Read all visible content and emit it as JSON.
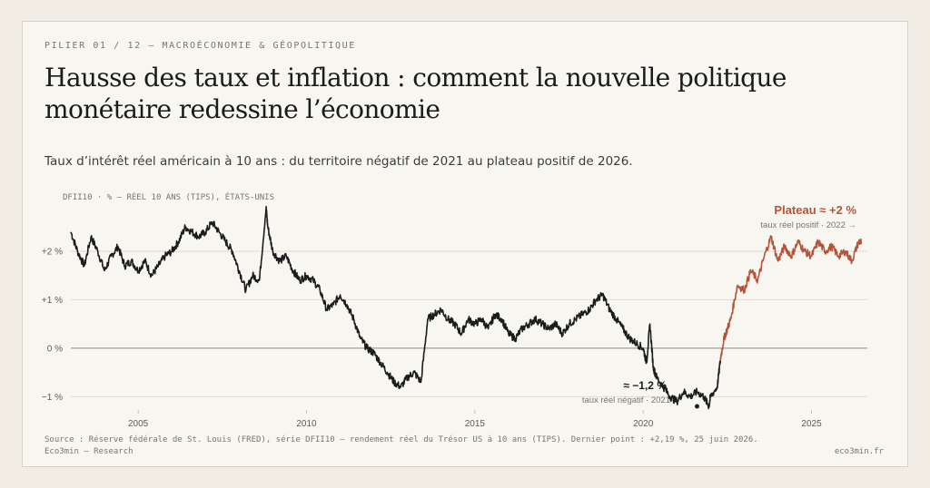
{
  "header": {
    "kicker": "PILIER 01 / 12 — MACROÉCONOMIE & GÉOPOLITIQUE",
    "title": "Hausse des taux et inflation : comment la nouvelle politique monétaire redessine l’économie",
    "subtitle": "Taux d’intérêt réel américain à 10 ans : du territoire négatif de 2021 au plateau positif de 2026."
  },
  "footer": {
    "source": "Source : Réserve fédérale de St. Louis (FRED), série DFII10 — rendement réel du Trésor US à 10 ans (TIPS). Dernier point : +2,19 %, 25 juin 2026.",
    "org": "Eco3min — Research",
    "brand": "eco3min.fr"
  },
  "colors": {
    "background": "#f8f6f0",
    "series_dark": "#1c1c1c",
    "series_accent": "#b5543a",
    "text": "#1b1b1b",
    "muted": "#7a756b"
  },
  "chart_data": {
    "type": "line",
    "series_label": "DFII10 · % — RÉEL 10 ANS (TIPS), ÉTATS-UNIS",
    "ylabel": "%",
    "ylim": [
      -1.35,
      2.9
    ],
    "xlim": [
      2003.0,
      2026.55
    ],
    "yticks": [
      {
        "value": 2,
        "label": "+2 %"
      },
      {
        "value": 1,
        "label": "+1 %"
      },
      {
        "value": 0,
        "label": "0 %"
      },
      {
        "value": -1,
        "label": "−1 %"
      }
    ],
    "xticks": [
      {
        "value": 2005,
        "label": "2005"
      },
      {
        "value": 2010,
        "label": "2010"
      },
      {
        "value": 2015,
        "label": "2015"
      },
      {
        "value": 2020,
        "label": "2020"
      },
      {
        "value": 2025,
        "label": "2025"
      }
    ],
    "grid": "horizontal",
    "split_year": 2022.3,
    "x": [
      2003.0,
      2003.2,
      2003.4,
      2003.6,
      2003.8,
      2004.0,
      2004.2,
      2004.4,
      2004.6,
      2004.8,
      2005.0,
      2005.2,
      2005.4,
      2005.6,
      2005.8,
      2006.0,
      2006.2,
      2006.4,
      2006.6,
      2006.8,
      2007.0,
      2007.2,
      2007.4,
      2007.6,
      2007.8,
      2008.0,
      2008.2,
      2008.4,
      2008.6,
      2008.8,
      2008.85,
      2009.0,
      2009.2,
      2009.4,
      2009.6,
      2009.8,
      2010.0,
      2010.2,
      2010.4,
      2010.6,
      2010.8,
      2011.0,
      2011.2,
      2011.4,
      2011.6,
      2011.8,
      2012.0,
      2012.2,
      2012.4,
      2012.6,
      2012.8,
      2013.0,
      2013.2,
      2013.4,
      2013.6,
      2013.8,
      2014.0,
      2014.2,
      2014.4,
      2014.6,
      2014.8,
      2015.0,
      2015.2,
      2015.4,
      2015.6,
      2015.8,
      2016.0,
      2016.2,
      2016.4,
      2016.6,
      2016.8,
      2017.0,
      2017.2,
      2017.4,
      2017.6,
      2017.8,
      2018.0,
      2018.2,
      2018.4,
      2018.6,
      2018.8,
      2019.0,
      2019.2,
      2019.4,
      2019.6,
      2019.8,
      2020.0,
      2020.1,
      2020.2,
      2020.3,
      2020.4,
      2020.6,
      2020.8,
      2021.0,
      2021.2,
      2021.4,
      2021.6,
      2021.8,
      2021.95,
      2022.0,
      2022.2,
      2022.3,
      2022.4,
      2022.5,
      2022.6,
      2022.8,
      2023.0,
      2023.2,
      2023.4,
      2023.6,
      2023.8,
      2024.0,
      2024.2,
      2024.4,
      2024.6,
      2024.8,
      2025.0,
      2025.2,
      2025.4,
      2025.6,
      2025.8,
      2026.0,
      2026.2,
      2026.4,
      2026.48
    ],
    "y": [
      2.4,
      2.0,
      1.7,
      2.3,
      2.0,
      1.6,
      1.9,
      2.1,
      1.7,
      1.8,
      1.6,
      1.8,
      1.5,
      1.7,
      1.9,
      2.0,
      2.2,
      2.5,
      2.4,
      2.3,
      2.4,
      2.6,
      2.4,
      2.2,
      2.0,
      1.6,
      1.2,
      1.5,
      1.4,
      2.9,
      2.5,
      2.0,
      1.8,
      1.9,
      1.6,
      1.4,
      1.5,
      1.4,
      1.2,
      0.8,
      0.9,
      1.1,
      0.9,
      0.6,
      0.2,
      0.0,
      -0.1,
      -0.3,
      -0.5,
      -0.7,
      -0.8,
      -0.6,
      -0.5,
      -0.7,
      0.6,
      0.7,
      0.8,
      0.6,
      0.5,
      0.3,
      0.6,
      0.5,
      0.6,
      0.4,
      0.7,
      0.6,
      0.3,
      0.2,
      0.4,
      0.5,
      0.6,
      0.5,
      0.4,
      0.5,
      0.3,
      0.5,
      0.6,
      0.7,
      0.8,
      1.0,
      1.1,
      0.8,
      0.6,
      0.4,
      0.2,
      0.1,
      0.0,
      -0.3,
      0.5,
      -0.4,
      -0.6,
      -0.8,
      -1.0,
      -1.1,
      -0.9,
      -1.0,
      -0.9,
      -1.0,
      -1.2,
      -1.0,
      -0.8,
      -0.2,
      0.2,
      0.4,
      0.6,
      1.3,
      1.2,
      1.6,
      1.4,
      1.9,
      2.3,
      1.8,
      2.1,
      1.9,
      2.2,
      2.0,
      1.9,
      2.2,
      2.0,
      2.1,
      1.9,
      2.0,
      1.8,
      2.2,
      2.19
    ],
    "annotations": [
      {
        "label": "Plateau ≈ +2 %",
        "sub": "taux réel positif · 2022 →"
      },
      {
        "label": "≈ −1,2 %",
        "sub": "taux réel négatif · 2021",
        "x": 2021.6,
        "y": -1.2
      }
    ]
  }
}
